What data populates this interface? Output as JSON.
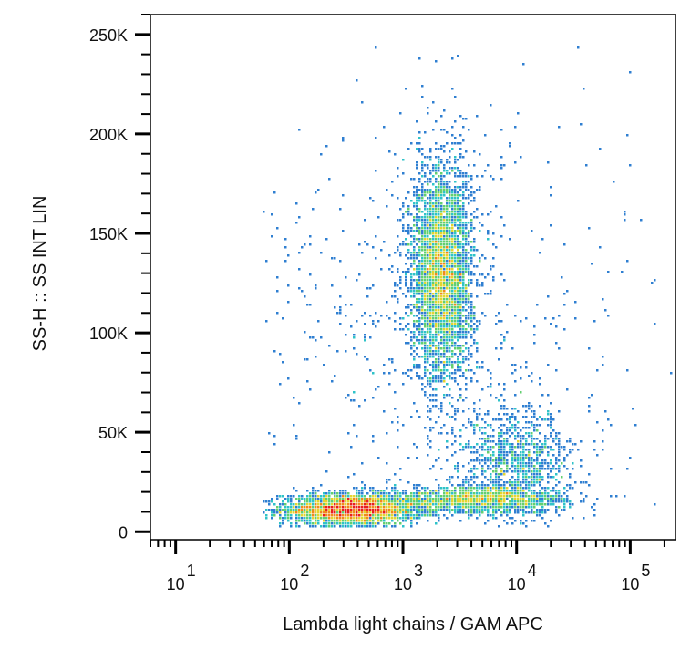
{
  "chart_data": {
    "type": "scatter",
    "style": "flow-cytometry density dot plot (pseudocolor)",
    "xlabel": "Lambda light chains  /  GAM APC",
    "ylabel": "SS-H :: SS INT LIN",
    "x_scale": "log",
    "y_scale": "linear",
    "xlim": [
      6,
      250000
    ],
    "ylim": [
      -4000,
      260000
    ],
    "x_ticks": [
      {
        "value": 10,
        "base": "10",
        "exp": "1"
      },
      {
        "value": 100,
        "base": "10",
        "exp": "2"
      },
      {
        "value": 1000,
        "base": "10",
        "exp": "3"
      },
      {
        "value": 10000,
        "base": "10",
        "exp": "4"
      },
      {
        "value": 100000,
        "base": "10",
        "exp": "5"
      }
    ],
    "y_ticks": [
      {
        "value": 0,
        "label": "0"
      },
      {
        "value": 50000,
        "label": "50K"
      },
      {
        "value": 100000,
        "label": "100K"
      },
      {
        "value": 150000,
        "label": "150K"
      },
      {
        "value": 200000,
        "label": "200K"
      },
      {
        "value": 250000,
        "label": "250K"
      }
    ],
    "density_colors": [
      "#2b3f9e",
      "#2f7fd1",
      "#2fc3c8",
      "#63cf70",
      "#e3d530",
      "#f08a1c",
      "#e81e1e"
    ],
    "populations": [
      {
        "x_center": 350,
        "y_center": 11000,
        "x_spread_decades": 0.3,
        "y_spread": 4000,
        "events": 3000
      },
      {
        "x_center": 4500,
        "y_center": 16000,
        "x_spread_decades": 0.4,
        "y_spread": 3500,
        "events": 1400
      },
      {
        "x_center": 2200,
        "y_center": 130000,
        "x_spread_decades": 0.14,
        "y_spread": 28000,
        "events": 3800
      },
      {
        "x_center": 10000,
        "y_center": 35000,
        "x_spread_decades": 0.25,
        "y_spread": 13000,
        "events": 1000
      },
      {
        "x_center": 2000,
        "y_center": 100000,
        "x_spread_decades": 0.9,
        "y_spread": 60000,
        "events": 700
      }
    ]
  }
}
